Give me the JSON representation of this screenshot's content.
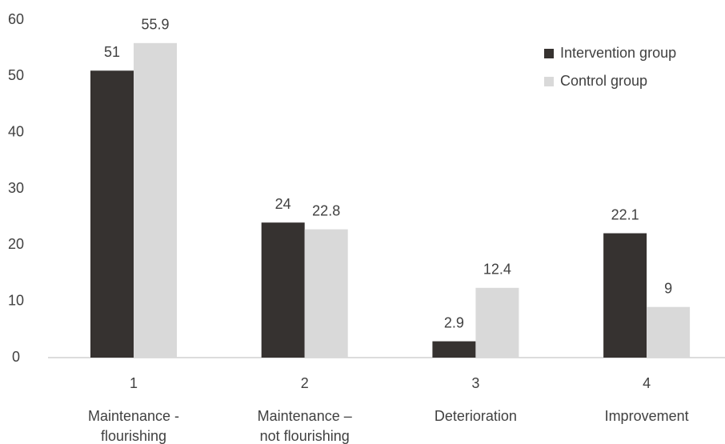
{
  "chart_data": {
    "type": "bar",
    "categories": [
      "1",
      "2",
      "3",
      "4"
    ],
    "category_labels": [
      [
        "Maintenance -",
        "flourishing"
      ],
      [
        "Maintenance –",
        "not flourishing"
      ],
      [
        "Deterioration"
      ],
      [
        "Improvement"
      ]
    ],
    "series": [
      {
        "name": "Intervention group",
        "color": "#363230",
        "values": [
          51,
          24,
          2.9,
          22.1
        ]
      },
      {
        "name": "Control group",
        "color": "#d9d9d9",
        "values": [
          55.9,
          22.8,
          12.4,
          9
        ]
      }
    ],
    "ylim": [
      0,
      60
    ],
    "yticks": [
      0,
      10,
      20,
      30,
      40,
      50,
      60
    ],
    "grid": false,
    "legend": "top-right"
  }
}
